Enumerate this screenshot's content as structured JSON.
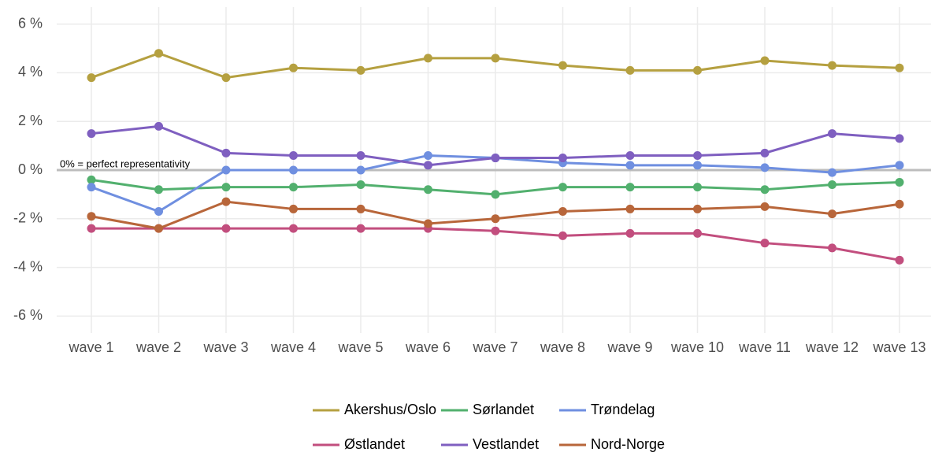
{
  "chart_data": {
    "type": "line",
    "categories": [
      "wave 1",
      "wave 2",
      "wave 3",
      "wave 4",
      "wave 5",
      "wave 6",
      "wave 7",
      "wave 8",
      "wave 9",
      "wave 10",
      "wave 11",
      "wave 12",
      "wave 13"
    ],
    "series": [
      {
        "name": "Akershus/Oslo",
        "color": "#b5a040",
        "values": [
          3.8,
          4.8,
          3.8,
          4.2,
          4.1,
          4.6,
          4.6,
          4.3,
          4.1,
          4.1,
          4.5,
          4.3,
          4.2
        ]
      },
      {
        "name": "Sørlandet",
        "color": "#52b06e",
        "values": [
          -0.4,
          -0.8,
          -0.7,
          -0.7,
          -0.6,
          -0.8,
          -1.0,
          -0.7,
          -0.7,
          -0.7,
          -0.8,
          -0.6,
          -0.5
        ]
      },
      {
        "name": "Trøndelag",
        "color": "#6f8fe0",
        "values": [
          -0.7,
          -1.7,
          0,
          0,
          0,
          0.6,
          0.5,
          0.3,
          0.2,
          0.2,
          0.1,
          -0.1,
          0.2
        ]
      },
      {
        "name": "Østlandet",
        "color": "#c24e7e",
        "values": [
          -2.4,
          -2.4,
          -2.4,
          -2.4,
          -2.4,
          -2.4,
          -2.5,
          -2.7,
          -2.6,
          -2.6,
          -3.0,
          -3.2,
          -3.7
        ]
      },
      {
        "name": "Vestlandet",
        "color": "#7f5fc0",
        "values": [
          1.5,
          1.8,
          0.7,
          0.6,
          0.6,
          0.2,
          0.5,
          0.5,
          0.6,
          0.6,
          0.7,
          1.5,
          1.3
        ]
      },
      {
        "name": "Nord-Norge",
        "color": "#b8663a",
        "values": [
          -1.9,
          -2.4,
          -1.3,
          -1.6,
          -1.6,
          -2.2,
          -2.0,
          -1.7,
          -1.6,
          -1.6,
          -1.5,
          -1.8,
          -1.4
        ]
      }
    ],
    "reference_line": {
      "value": 0,
      "label": "0% = perfect representativity"
    },
    "ylim": [
      -6.7,
      6.7
    ],
    "yticks": [
      {
        "value": 6,
        "label": "6 %"
      },
      {
        "value": 4,
        "label": "4 %"
      },
      {
        "value": 2,
        "label": "2 %"
      },
      {
        "value": 0,
        "label": "0 %"
      },
      {
        "value": -2,
        "label": "-2 %"
      },
      {
        "value": -4,
        "label": "-4 %"
      },
      {
        "value": -6,
        "label": "-6 %"
      }
    ],
    "grid": true,
    "legend": "bottom"
  }
}
